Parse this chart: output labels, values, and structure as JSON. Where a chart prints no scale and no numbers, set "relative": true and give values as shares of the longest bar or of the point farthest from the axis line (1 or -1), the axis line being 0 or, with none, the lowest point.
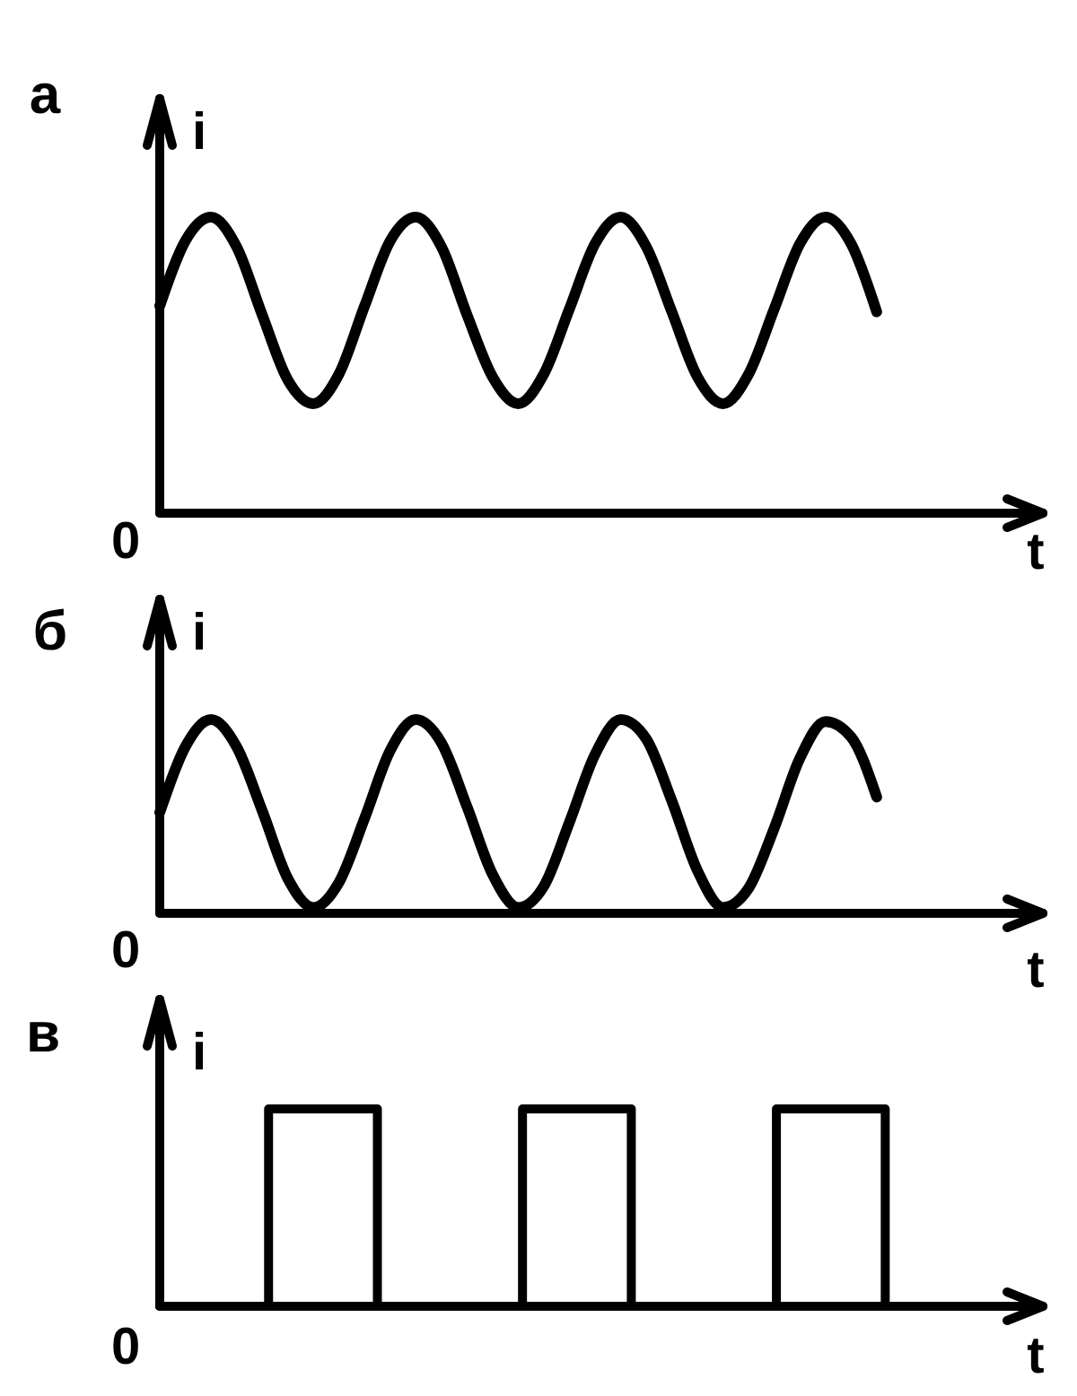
{
  "chart_data": [
    {
      "type": "line",
      "title": "а",
      "xlabel": "t",
      "ylabel": "i",
      "annotations": [
        "0"
      ],
      "relative": true,
      "color": "#000000",
      "categories": [
        null,
        null,
        null,
        null,
        null,
        null,
        null,
        null,
        null,
        null,
        null,
        null,
        null,
        null,
        null,
        null,
        null,
        null,
        null,
        null,
        null,
        null,
        null,
        null,
        null,
        null,
        null,
        null,
        null,
        null,
        null,
        null,
        null,
        null,
        null
      ],
      "values": [
        0.7,
        0.92,
        1,
        0.9,
        0.67,
        0.45,
        0.37,
        0.47,
        0.7,
        0.92,
        1,
        0.9,
        0.67,
        0.46,
        0.37,
        0.47,
        0.69,
        0.91,
        1,
        0.9,
        0.68,
        0.46,
        0.37,
        0.47,
        0.69,
        0.91,
        1,
        0.91,
        0.68,
        null,
        null,
        null,
        null,
        null,
        null
      ]
    },
    {
      "type": "line",
      "title": "б",
      "xlabel": "t",
      "ylabel": "i",
      "annotations": [
        "0"
      ],
      "relative": true,
      "color": "#000000",
      "categories": [
        null,
        null,
        null,
        null,
        null,
        null,
        null,
        null,
        null,
        null,
        null,
        null,
        null,
        null,
        null,
        null,
        null,
        null,
        null,
        null,
        null,
        null,
        null,
        null,
        null,
        null,
        null,
        null,
        null,
        null,
        null,
        null,
        null,
        null,
        null
      ],
      "values": [
        0.52,
        0.86,
        1,
        0.86,
        0.53,
        0.18,
        0.03,
        0.16,
        0.49,
        0.84,
        1,
        0.88,
        0.55,
        0.2,
        0.03,
        0.14,
        0.47,
        0.82,
        1,
        0.9,
        0.58,
        0.22,
        0.03,
        0.13,
        0.44,
        0.8,
        0.99,
        0.91,
        0.6,
        null,
        null,
        null,
        null,
        null,
        null
      ]
    },
    {
      "type": "step",
      "title": "в",
      "xlabel": "t",
      "ylabel": "i",
      "annotations": [
        "0"
      ],
      "relative": true,
      "color": "#000000",
      "categories": [
        null,
        null,
        null,
        null,
        null,
        null,
        null,
        null,
        null,
        null,
        null,
        null,
        null,
        null,
        null,
        null,
        null,
        null,
        null,
        null,
        null,
        null,
        null,
        null,
        null
      ],
      "values": [
        0,
        0,
        0,
        1,
        1,
        1,
        0,
        0,
        0,
        0,
        1,
        1,
        1,
        0,
        0,
        0,
        0,
        1,
        1,
        1,
        0,
        0,
        0,
        0,
        0
      ]
    }
  ]
}
